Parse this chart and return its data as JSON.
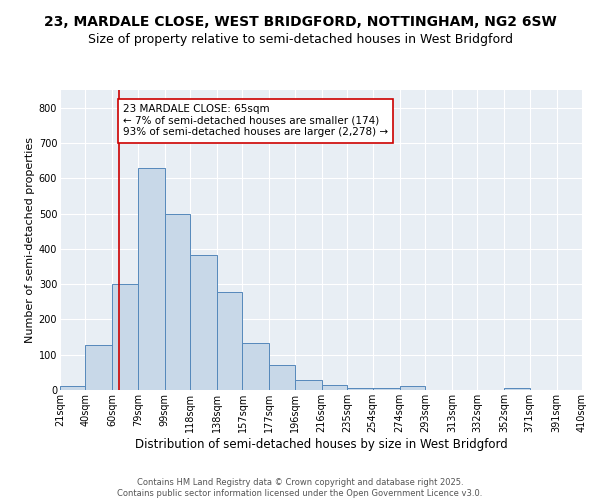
{
  "title1": "23, MARDALE CLOSE, WEST BRIDGFORD, NOTTINGHAM, NG2 6SW",
  "title2": "Size of property relative to semi-detached houses in West Bridgford",
  "xlabel": "Distribution of semi-detached houses by size in West Bridgford",
  "ylabel": "Number of semi-detached properties",
  "bins": [
    21,
    40,
    60,
    79,
    99,
    118,
    138,
    157,
    177,
    196,
    216,
    235,
    254,
    274,
    293,
    313,
    332,
    352,
    371,
    391,
    410
  ],
  "values": [
    10,
    128,
    300,
    630,
    500,
    383,
    277,
    133,
    70,
    27,
    13,
    7,
    5,
    10,
    0,
    0,
    0,
    5,
    0,
    0
  ],
  "bar_color": "#c8d8e8",
  "bar_edge_color": "#5588bb",
  "vline_x": 65,
  "vline_color": "#cc0000",
  "annotation_line1": "23 MARDALE CLOSE: 65sqm",
  "annotation_line2": "← 7% of semi-detached houses are smaller (174)",
  "annotation_line3": "93% of semi-detached houses are larger (2,278) →",
  "annotation_box_color": "white",
  "annotation_box_edge": "#cc0000",
  "ylim": [
    0,
    850
  ],
  "yticks": [
    0,
    100,
    200,
    300,
    400,
    500,
    600,
    700,
    800
  ],
  "bg_color": "#e8eef4",
  "footer_text": "Contains HM Land Registry data © Crown copyright and database right 2025.\nContains public sector information licensed under the Open Government Licence v3.0.",
  "title1_fontsize": 10,
  "title2_fontsize": 9,
  "xlabel_fontsize": 8.5,
  "ylabel_fontsize": 8,
  "tick_fontsize": 7,
  "annotation_fontsize": 7.5,
  "footer_fontsize": 6
}
